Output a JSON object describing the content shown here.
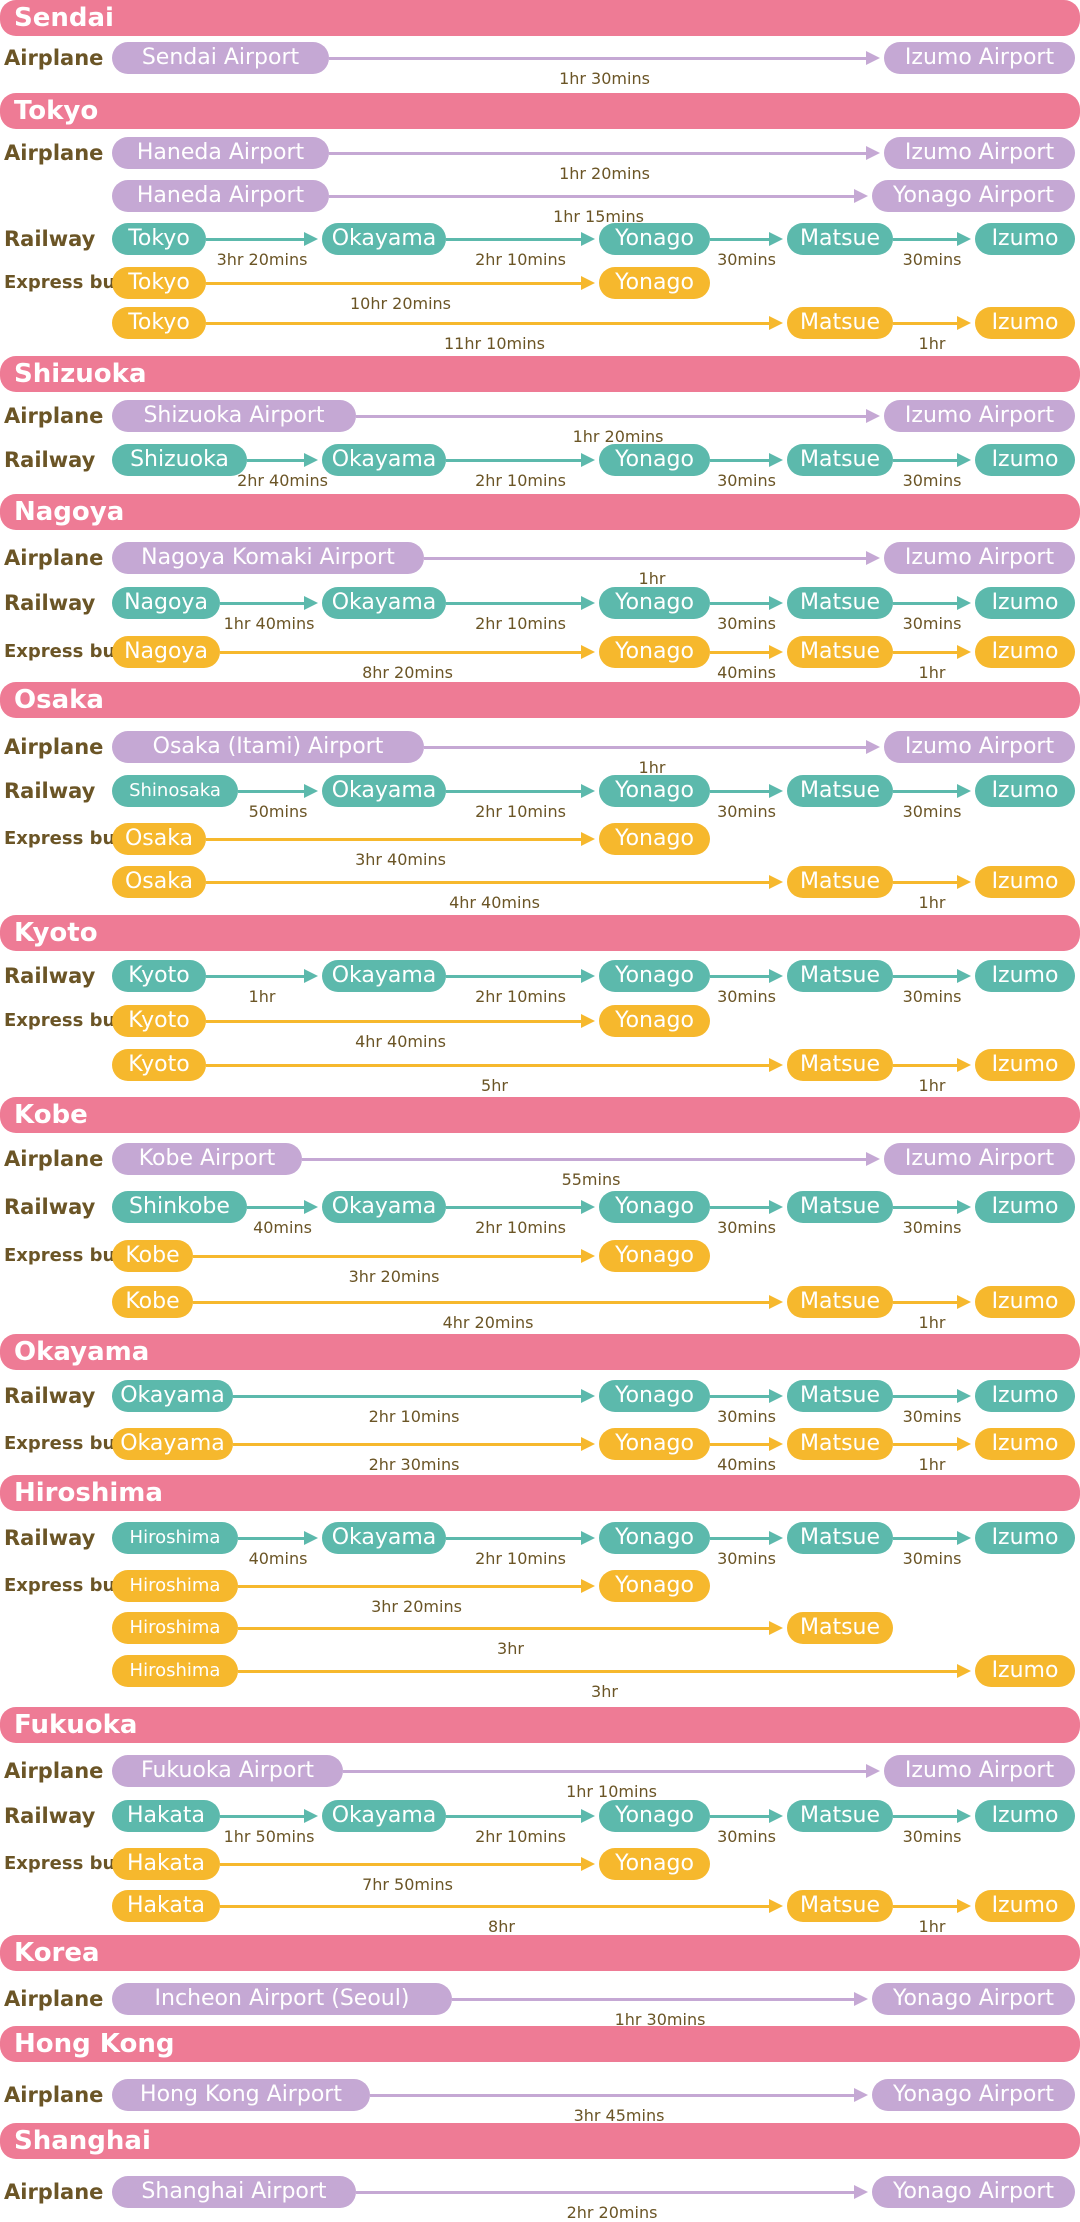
{
  "sections": [
    {
      "name": "Sendai",
      "routes": [
        {
          "mode": "Airplane",
          "type": "airplane",
          "stops": [
            "Sendai Airport",
            "Izumo Airport"
          ],
          "durations": [
            "1hr 30mins"
          ]
        }
      ]
    },
    {
      "name": "Tokyo",
      "routes": [
        {
          "mode": "Airplane",
          "type": "airplane",
          "stops": [
            "Haneda Airport",
            "Izumo Airport"
          ],
          "durations": [
            "1hr 20mins"
          ]
        },
        {
          "mode": "",
          "type": "airplane",
          "stops": [
            "Haneda Airport",
            "Yonago Airport"
          ],
          "durations": [
            "1hr 15mins"
          ]
        },
        {
          "mode": "Railway",
          "type": "railway",
          "stops": [
            "Tokyo",
            "Okayama",
            "Yonago",
            "Matsue",
            "Izumo"
          ],
          "durations": [
            "3hr 20mins",
            "2hr 10mins",
            "30mins",
            "30mins"
          ]
        },
        {
          "mode": "Express bus",
          "type": "bus",
          "stops": [
            "Tokyo",
            "Yonago"
          ],
          "durations": [
            "10hr 20mins"
          ]
        },
        {
          "mode": "",
          "type": "bus",
          "stops": [
            "Tokyo",
            "Matsue",
            "Izumo"
          ],
          "durations": [
            "11hr 10mins",
            "1hr"
          ]
        }
      ]
    },
    {
      "name": "Shizuoka",
      "routes": [
        {
          "mode": "Airplane",
          "type": "airplane",
          "stops": [
            "Shizuoka Airport",
            "Izumo Airport"
          ],
          "durations": [
            "1hr 20mins"
          ]
        },
        {
          "mode": "Railway",
          "type": "railway",
          "stops": [
            "Shizuoka",
            "Okayama",
            "Yonago",
            "Matsue",
            "Izumo"
          ],
          "durations": [
            "2hr 40mins",
            "2hr 10mins",
            "30mins",
            "30mins"
          ]
        }
      ]
    },
    {
      "name": "Nagoya",
      "routes": [
        {
          "mode": "Airplane",
          "type": "airplane",
          "stops": [
            "Nagoya Komaki Airport",
            "Izumo Airport"
          ],
          "durations": [
            "1hr"
          ]
        },
        {
          "mode": "Railway",
          "type": "railway",
          "stops": [
            "Nagoya",
            "Okayama",
            "Yonago",
            "Matsue",
            "Izumo"
          ],
          "durations": [
            "1hr 40mins",
            "2hr 10mins",
            "30mins",
            "30mins"
          ]
        },
        {
          "mode": "Express bus",
          "type": "bus",
          "stops": [
            "Nagoya",
            "Yonago",
            "Matsue",
            "Izumo"
          ],
          "durations": [
            "8hr 20mins",
            "40mins",
            "1hr"
          ]
        }
      ]
    },
    {
      "name": "Osaka",
      "routes": [
        {
          "mode": "Airplane",
          "type": "airplane",
          "stops": [
            "Osaka (Itami) Airport",
            "Izumo Airport"
          ],
          "durations": [
            "1hr"
          ]
        },
        {
          "mode": "Railway",
          "type": "railway",
          "stops": [
            "Shinosaka",
            "Okayama",
            "Yonago",
            "Matsue",
            "Izumo"
          ],
          "durations": [
            "50mins",
            "2hr 10mins",
            "30mins",
            "30mins"
          ]
        },
        {
          "mode": "Express bus",
          "type": "bus",
          "stops": [
            "Osaka",
            "Yonago"
          ],
          "durations": [
            "3hr 40mins"
          ]
        },
        {
          "mode": "",
          "type": "bus",
          "stops": [
            "Osaka",
            "Matsue",
            "Izumo"
          ],
          "durations": [
            "4hr 40mins",
            "1hr"
          ]
        }
      ]
    },
    {
      "name": "Kyoto",
      "routes": [
        {
          "mode": "Railway",
          "type": "railway",
          "stops": [
            "Kyoto",
            "Okayama",
            "Yonago",
            "Matsue",
            "Izumo"
          ],
          "durations": [
            "1hr",
            "2hr 10mins",
            "30mins",
            "30mins"
          ]
        },
        {
          "mode": "Express bus",
          "type": "bus",
          "stops": [
            "Kyoto",
            "Yonago"
          ],
          "durations": [
            "4hr 40mins"
          ]
        },
        {
          "mode": "",
          "type": "bus",
          "stops": [
            "Kyoto",
            "Matsue",
            "Izumo"
          ],
          "durations": [
            "5hr",
            "1hr"
          ]
        }
      ]
    },
    {
      "name": "Kobe",
      "routes": [
        {
          "mode": "Airplane",
          "type": "airplane",
          "stops": [
            "Kobe Airport",
            "Izumo Airport"
          ],
          "durations": [
            "55mins"
          ]
        },
        {
          "mode": "Railway",
          "type": "railway",
          "stops": [
            "Shinkobe",
            "Okayama",
            "Yonago",
            "Matsue",
            "Izumo"
          ],
          "durations": [
            "40mins",
            "2hr 10mins",
            "30mins",
            "30mins"
          ]
        },
        {
          "mode": "Express bus",
          "type": "bus",
          "stops": [
            "Kobe",
            "Yonago"
          ],
          "durations": [
            "3hr 20mins"
          ]
        },
        {
          "mode": "",
          "type": "bus",
          "stops": [
            "Kobe",
            "Matsue",
            "Izumo"
          ],
          "durations": [
            "4hr 20mins",
            "1hr"
          ]
        }
      ]
    },
    {
      "name": "Okayama",
      "routes": [
        {
          "mode": "Railway",
          "type": "railway",
          "stops": [
            "Okayama",
            "Yonago",
            "Matsue",
            "Izumo"
          ],
          "durations": [
            "2hr 10mins",
            "30mins",
            "30mins"
          ]
        },
        {
          "mode": "Express bus",
          "type": "bus",
          "stops": [
            "Okayama",
            "Yonago",
            "Matsue",
            "Izumo"
          ],
          "durations": [
            "2hr 30mins",
            "40mins",
            "1hr"
          ]
        }
      ]
    },
    {
      "name": "Hiroshima",
      "routes": [
        {
          "mode": "Railway",
          "type": "railway",
          "stops": [
            "Hiroshima",
            "Okayama",
            "Yonago",
            "Matsue",
            "Izumo"
          ],
          "durations": [
            "40mins",
            "2hr 10mins",
            "30mins",
            "30mins"
          ]
        },
        {
          "mode": "Express bus",
          "type": "bus",
          "stops": [
            "Hiroshima",
            "Yonago"
          ],
          "durations": [
            "3hr 20mins"
          ]
        },
        {
          "mode": "",
          "type": "bus",
          "stops": [
            "Hiroshima",
            "Matsue"
          ],
          "durations": [
            "3hr"
          ]
        },
        {
          "mode": "",
          "type": "bus",
          "stops": [
            "Hiroshima",
            "Izumo"
          ],
          "durations": [
            "3hr"
          ]
        }
      ]
    },
    {
      "name": "Fukuoka",
      "routes": [
        {
          "mode": "Airplane",
          "type": "airplane",
          "stops": [
            "Fukuoka Airport",
            "Izumo Airport"
          ],
          "durations": [
            "1hr 10mins"
          ]
        },
        {
          "mode": "Railway",
          "type": "railway",
          "stops": [
            "Hakata",
            "Okayama",
            "Yonago",
            "Matsue",
            "Izumo"
          ],
          "durations": [
            "1hr 50mins",
            "2hr 10mins",
            "30mins",
            "30mins"
          ]
        },
        {
          "mode": "Express bus",
          "type": "bus",
          "stops": [
            "Hakata",
            "Yonago"
          ],
          "durations": [
            "7hr 50mins"
          ]
        },
        {
          "mode": "",
          "type": "bus",
          "stops": [
            "Hakata",
            "Matsue",
            "Izumo"
          ],
          "durations": [
            "8hr",
            "1hr"
          ]
        }
      ]
    },
    {
      "name": "Korea",
      "routes": [
        {
          "mode": "Airplane",
          "type": "airplane",
          "stops": [
            "Incheon Airport (Seoul)",
            "Yonago Airport"
          ],
          "durations": [
            "1hr 30mins"
          ]
        }
      ]
    },
    {
      "name": "Hong Kong",
      "routes": [
        {
          "mode": "Airplane",
          "type": "airplane",
          "stops": [
            "Hong Kong Airport",
            "Yonago Airport"
          ],
          "durations": [
            "3hr 45mins"
          ]
        }
      ]
    },
    {
      "name": "Shanghai",
      "routes": [
        {
          "mode": "Airplane",
          "type": "airplane",
          "stops": [
            "Shanghai Airport",
            "Yonago Airport"
          ],
          "durations": [
            "2hr 20mins"
          ]
        }
      ]
    }
  ]
}
